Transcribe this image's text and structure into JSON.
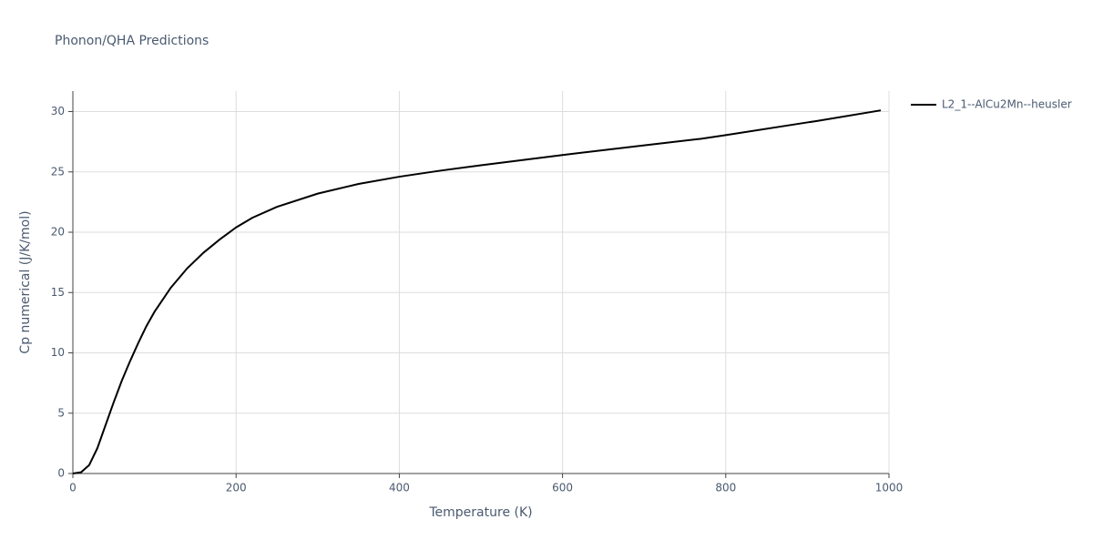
{
  "chart_data": {
    "type": "line",
    "title": "Phonon/QHA Predictions",
    "x_label": "Temperature (K)",
    "y_label": "Cp numerical (J/K/mol)",
    "x": [
      0,
      10,
      20,
      30,
      40,
      50,
      60,
      70,
      80,
      90,
      100,
      120,
      140,
      160,
      180,
      200,
      220,
      250,
      300,
      350,
      400,
      450,
      500,
      600,
      700,
      770,
      800,
      900,
      910,
      990
    ],
    "series": [
      {
        "name": "L2_1--AlCu2Mn--heusler",
        "color": "#000000",
        "values": [
          0,
          0.1,
          0.7,
          2.1,
          4.0,
          5.9,
          7.7,
          9.3,
          10.8,
          12.2,
          13.4,
          15.4,
          17.0,
          18.3,
          19.4,
          20.4,
          21.2,
          22.1,
          23.2,
          24.0,
          24.6,
          25.1,
          25.55,
          26.4,
          27.2,
          27.75,
          28.05,
          29.1,
          29.2,
          30.1
        ]
      }
    ],
    "xlim": [
      0,
      1000
    ],
    "ylim": [
      0,
      31.7
    ],
    "xticks": [
      0,
      200,
      400,
      600,
      800,
      1000
    ],
    "yticks": [
      0,
      5,
      10,
      15,
      20,
      25,
      30
    ],
    "grid": true
  }
}
